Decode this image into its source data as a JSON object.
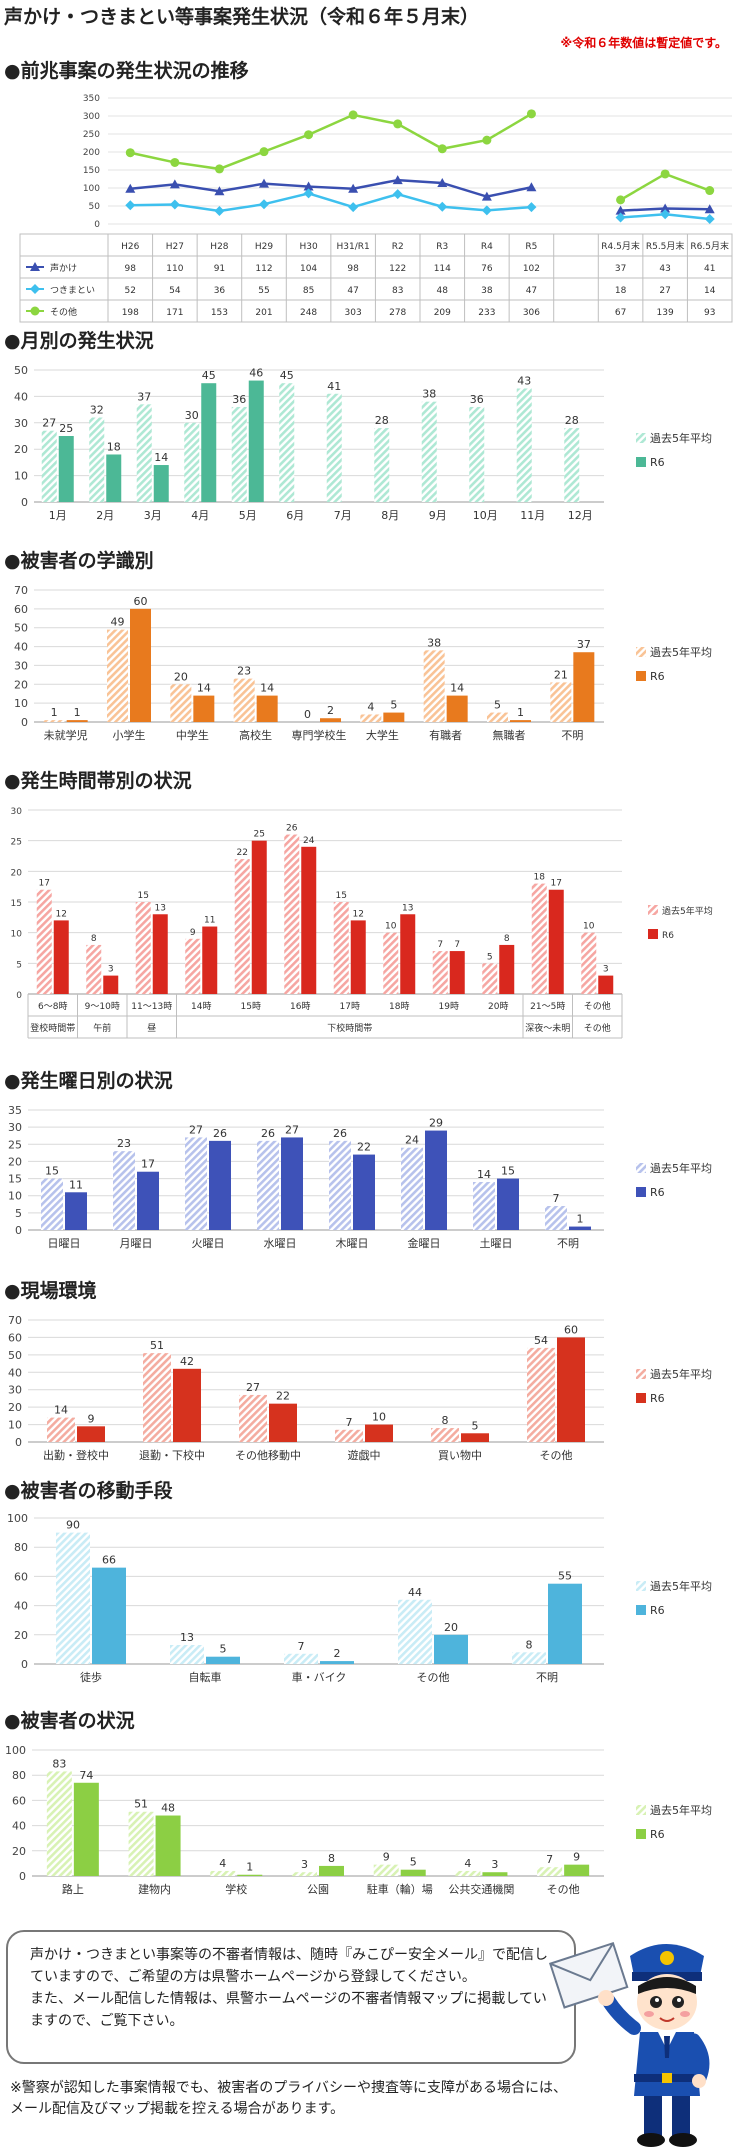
{
  "header": {
    "title": "声かけ・つきまとい等事案発生状況（令和６年５月末）",
    "note": "※令和６年数値は暫定値です。"
  },
  "sections": {
    "trend": "●前兆事案の発生状況の推移",
    "monthly": "●月別の発生状況",
    "school": "●被害者の学識別",
    "time": "●発生時間帯別の状況",
    "weekday": "●発生曜日別の状況",
    "place": "●現場環境",
    "transport": "●被害者の移動手段",
    "status": "●被害者の状況"
  },
  "chart_data": [
    {
      "id": "trend",
      "type": "line",
      "ylim": [
        0,
        350
      ],
      "yticks": [
        0,
        50,
        100,
        150,
        200,
        250,
        300,
        350
      ],
      "categories": [
        "H26",
        "H27",
        "H28",
        "H29",
        "H30",
        "H31/R1",
        "R2",
        "R3",
        "R4",
        "R5"
      ],
      "categories2": [
        "R4.5月末",
        "R5.5月末",
        "R6.5月末"
      ],
      "series": [
        {
          "name": "声かけ",
          "color": "#3a4fb0",
          "marker": "triangle",
          "values": [
            98,
            110,
            91,
            112,
            104,
            98,
            122,
            114,
            76,
            102
          ],
          "values2": [
            37,
            43,
            41
          ]
        },
        {
          "name": "つきまとい",
          "color": "#3ec0ee",
          "marker": "diamond",
          "values": [
            52,
            54,
            36,
            55,
            85,
            47,
            83,
            48,
            38,
            47
          ],
          "values2": [
            18,
            27,
            14
          ]
        },
        {
          "name": "その他",
          "color": "#8cd640",
          "marker": "circle",
          "values": [
            198,
            171,
            153,
            201,
            248,
            303,
            278,
            209,
            233,
            306
          ],
          "values2": [
            67,
            139,
            93
          ]
        }
      ]
    },
    {
      "id": "monthly",
      "type": "bar",
      "ylim": [
        0,
        50
      ],
      "yticks": [
        0,
        10,
        20,
        30,
        40,
        50
      ],
      "categories": [
        "1月",
        "2月",
        "3月",
        "4月",
        "5月",
        "6月",
        "7月",
        "8月",
        "9月",
        "10月",
        "11月",
        "12月"
      ],
      "series": [
        {
          "name": "過去5年平均",
          "color": "#aee8d4",
          "hatch": true,
          "values": [
            27,
            32,
            37,
            30,
            36,
            45,
            41,
            28,
            38,
            36,
            43,
            28
          ]
        },
        {
          "name": "R6",
          "color": "#4cb896",
          "hatch": false,
          "values": [
            25,
            18,
            14,
            45,
            46,
            null,
            null,
            null,
            null,
            null,
            null,
            null
          ]
        }
      ]
    },
    {
      "id": "school",
      "type": "bar",
      "ylim": [
        0,
        70
      ],
      "yticks": [
        0,
        10,
        20,
        30,
        40,
        50,
        60,
        70
      ],
      "categories": [
        "未就学児",
        "小学生",
        "中学生",
        "高校生",
        "専門学校生",
        "大学生",
        "有職者",
        "無職者",
        "不明"
      ],
      "series": [
        {
          "name": "過去5年平均",
          "color": "#f9c396",
          "hatch": true,
          "values": [
            1,
            49,
            20,
            23,
            0,
            4,
            38,
            5,
            21
          ]
        },
        {
          "name": "R6",
          "color": "#e87a1e",
          "hatch": false,
          "values": [
            1,
            60,
            14,
            14,
            2,
            5,
            14,
            1,
            37
          ]
        }
      ]
    },
    {
      "id": "time",
      "type": "bar",
      "ylim": [
        0,
        30
      ],
      "yticks": [
        0,
        5,
        10,
        15,
        20,
        25,
        30
      ],
      "categories": [
        "6～8時",
        "9～10時",
        "11～13時",
        "14時",
        "15時",
        "16時",
        "17時",
        "18時",
        "19時",
        "20時",
        "21～5時",
        "その他"
      ],
      "groups": [
        {
          "label": "登校時間帯",
          "span": 1
        },
        {
          "label": "午前",
          "span": 1
        },
        {
          "label": "昼",
          "span": 1
        },
        {
          "label": "下校時間帯",
          "span": 7
        },
        {
          "label": "深夜～未明",
          "span": 1
        },
        {
          "label": "その他",
          "span": 1
        }
      ],
      "series": [
        {
          "name": "過去5年平均",
          "color": "#f6a6a2",
          "hatch": true,
          "values": [
            17,
            8,
            15,
            9,
            22,
            26,
            15,
            10,
            7,
            5,
            18,
            10
          ]
        },
        {
          "name": "R6",
          "color": "#d9281e",
          "hatch": false,
          "values": [
            12,
            3,
            13,
            11,
            25,
            24,
            12,
            13,
            7,
            8,
            17,
            3
          ]
        }
      ]
    },
    {
      "id": "weekday",
      "type": "bar",
      "ylim": [
        0,
        35
      ],
      "yticks": [
        0,
        5,
        10,
        15,
        20,
        25,
        30,
        35
      ],
      "categories": [
        "日曜日",
        "月曜日",
        "火曜日",
        "水曜日",
        "木曜日",
        "金曜日",
        "土曜日",
        "不明"
      ],
      "series": [
        {
          "name": "過去5年平均",
          "color": "#b7c2ec",
          "hatch": true,
          "values": [
            15,
            23,
            27,
            26,
            26,
            24,
            14,
            7
          ]
        },
        {
          "name": "R6",
          "color": "#3e52b8",
          "hatch": false,
          "values": [
            11,
            17,
            26,
            27,
            22,
            29,
            15,
            1
          ]
        }
      ]
    },
    {
      "id": "place",
      "type": "bar",
      "ylim": [
        0,
        70
      ],
      "yticks": [
        0,
        10,
        20,
        30,
        40,
        50,
        60,
        70
      ],
      "categories": [
        "出勤・登校中",
        "退勤・下校中",
        "その他移動中",
        "遊戯中",
        "買い物中",
        "その他"
      ],
      "series": [
        {
          "name": "過去5年平均",
          "color": "#f4aca0",
          "hatch": true,
          "values": [
            14,
            51,
            27,
            7,
            8,
            54
          ]
        },
        {
          "name": "R6",
          "color": "#d6321e",
          "hatch": false,
          "values": [
            9,
            42,
            22,
            10,
            5,
            60
          ]
        }
      ]
    },
    {
      "id": "transport",
      "type": "bar",
      "ylim": [
        0,
        100
      ],
      "yticks": [
        0,
        20,
        40,
        60,
        80,
        100
      ],
      "categories": [
        "徒歩",
        "自転車",
        "車・バイク",
        "その他",
        "不明"
      ],
      "series": [
        {
          "name": "過去5年平均",
          "color": "#c9ecf6",
          "hatch": true,
          "values": [
            90,
            13,
            7,
            44,
            8
          ]
        },
        {
          "name": "R6",
          "color": "#4eb4dc",
          "hatch": false,
          "values": [
            66,
            5,
            2,
            20,
            55
          ]
        }
      ]
    },
    {
      "id": "status",
      "type": "bar",
      "ylim": [
        0,
        100
      ],
      "yticks": [
        0,
        20,
        40,
        60,
        80,
        100
      ],
      "categories": [
        "路上",
        "建物内",
        "学校",
        "公園",
        "駐車（輪）場",
        "公共交通機関",
        "その他"
      ],
      "series": [
        {
          "name": "過去5年平均",
          "color": "#d8f2b4",
          "hatch": true,
          "values": [
            83,
            51,
            4,
            3,
            9,
            4,
            7
          ]
        },
        {
          "name": "R6",
          "color": "#8ccf44",
          "hatch": false,
          "values": [
            74,
            48,
            1,
            8,
            5,
            3,
            9
          ]
        }
      ]
    }
  ],
  "notice": {
    "line1": "声かけ・つきまとい事案等の不審者情報は、随時『みこぴー安全メール』で配信していますので、ご希望の方は県警ホームページから登録してください。",
    "line2": "また、メール配信した情報は、県警ホームページの不審者情報マップに掲載していますので、ご覧下さい。"
  },
  "footnote": "※警察が認知した事案情報でも、被害者のプライバシーや捜査等に支障がある場合には、メール配信及びマップ掲載を控える場合があります。"
}
